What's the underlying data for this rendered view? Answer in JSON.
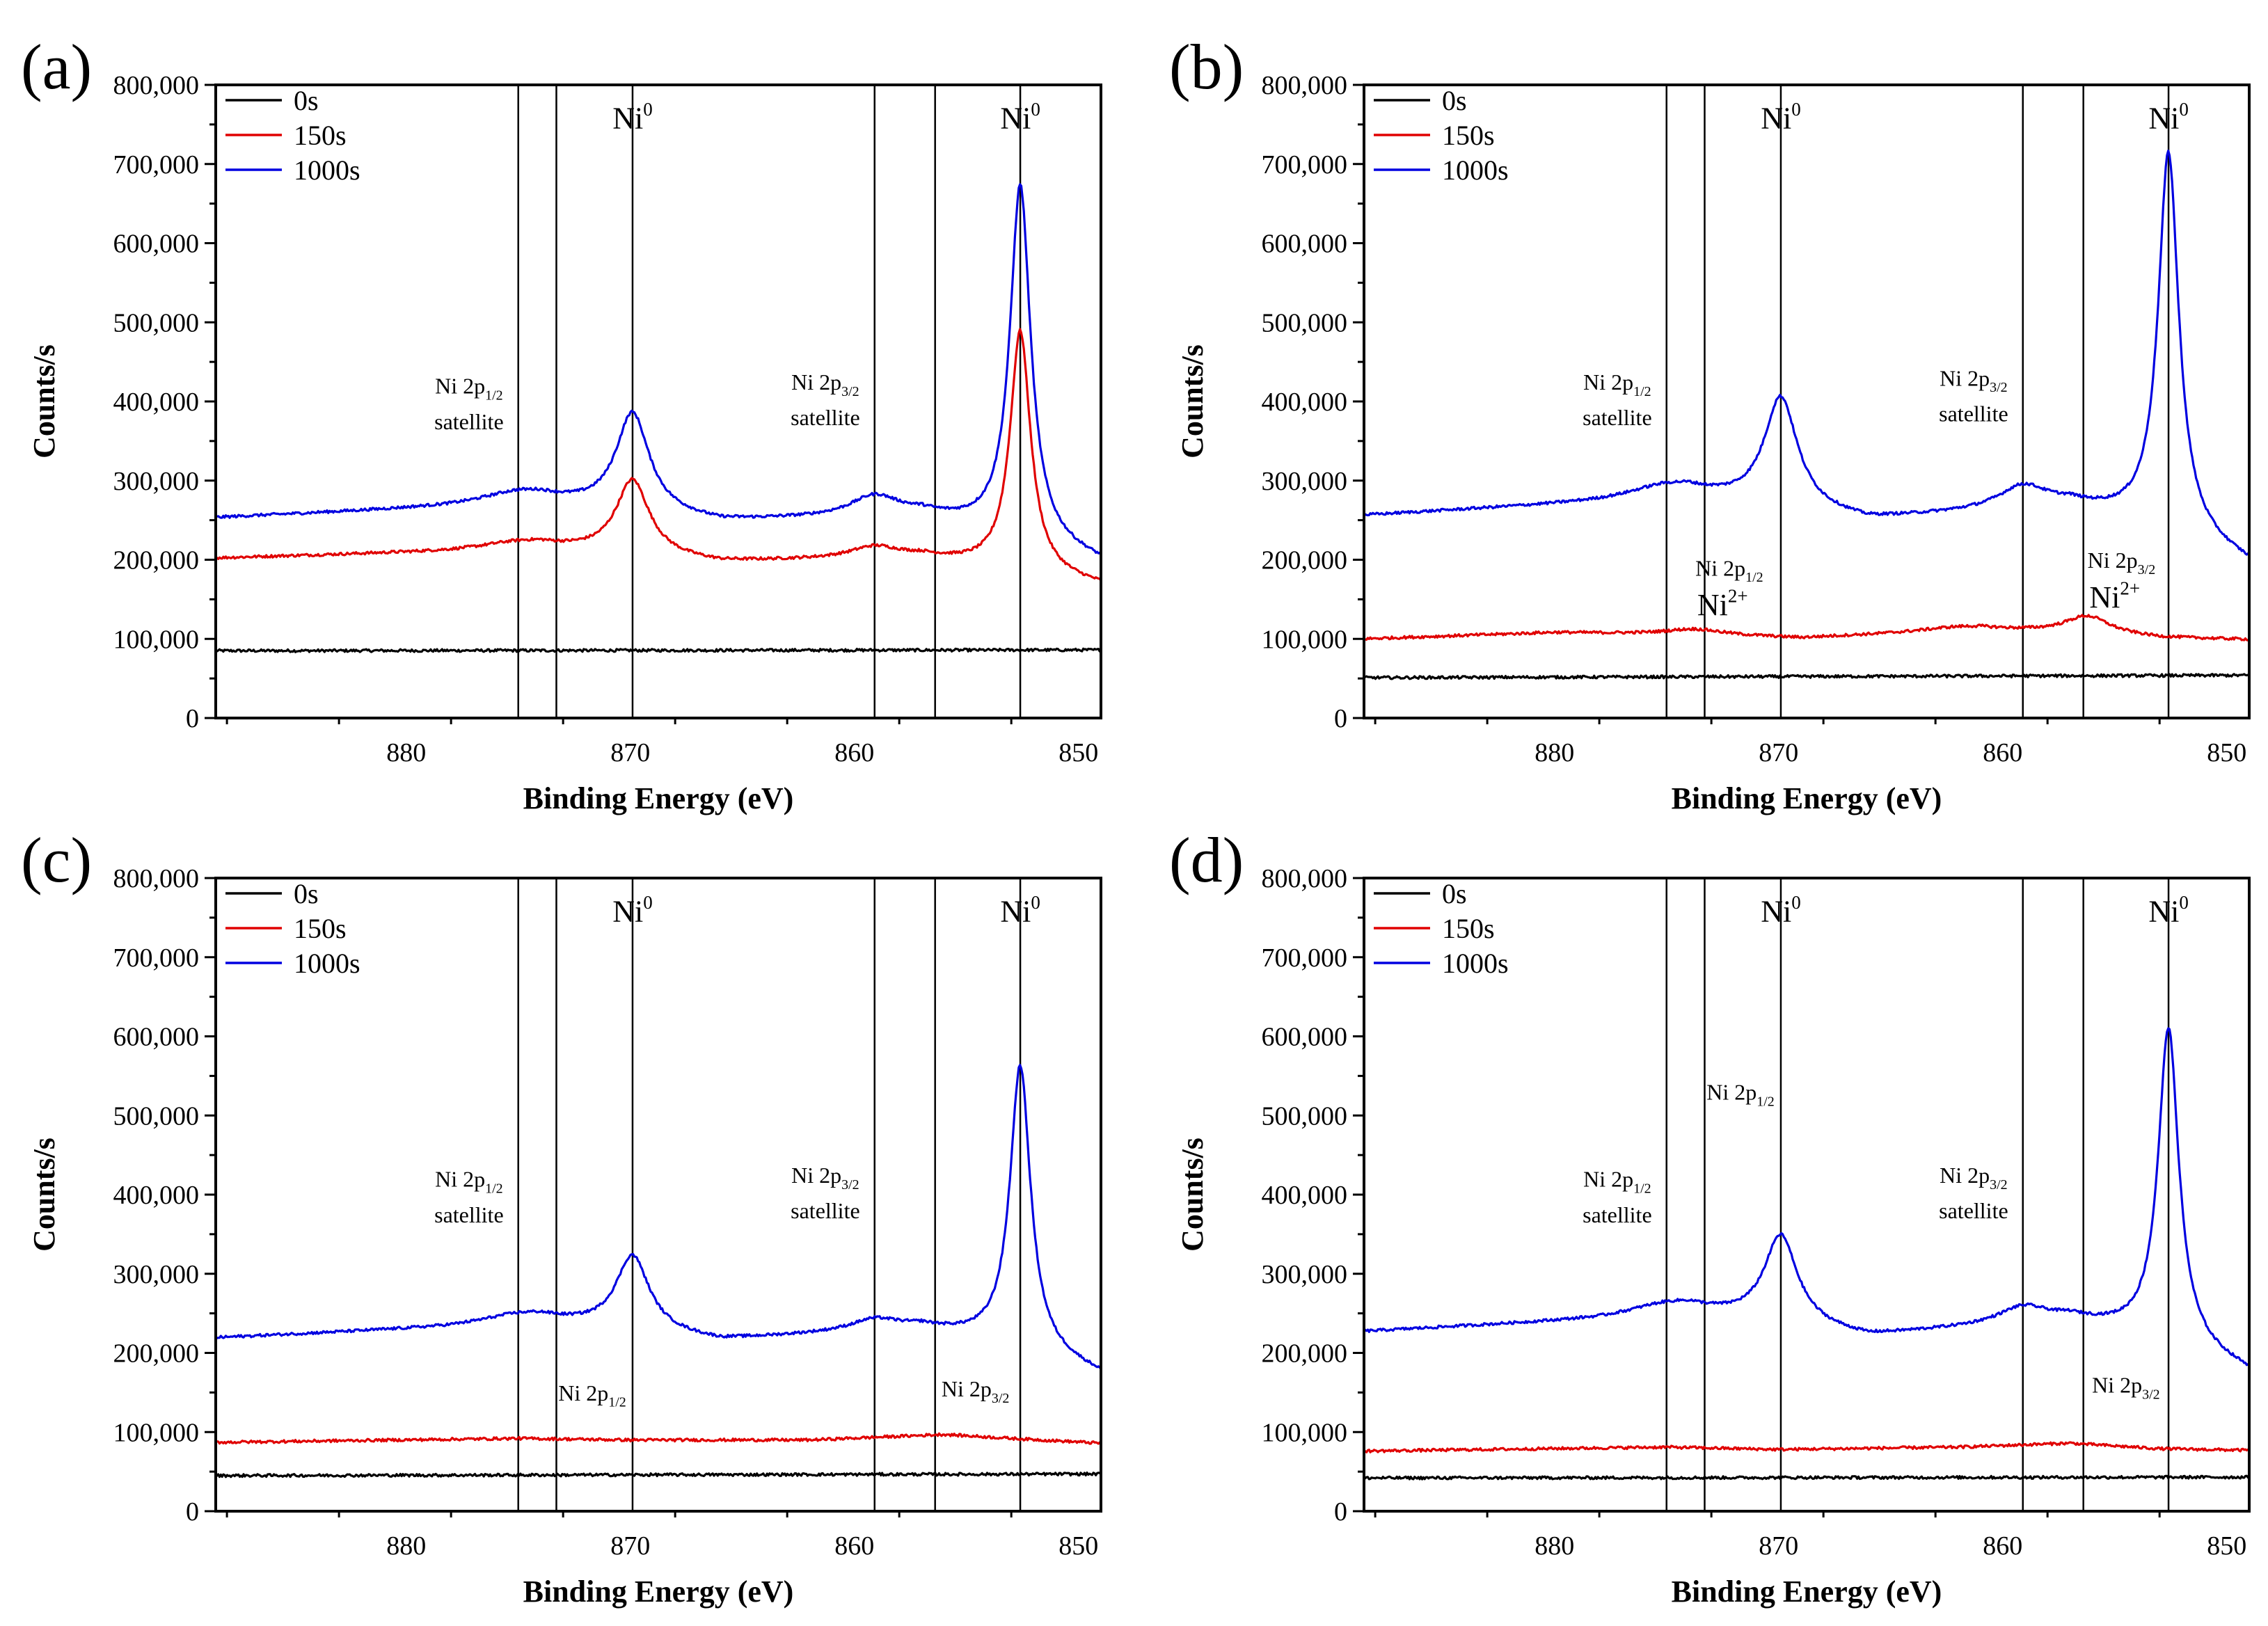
{
  "figure": {
    "colors": {
      "0s": "#000000",
      "150s": "#e00000",
      "1000s": "#0000e0",
      "axis": "#000000"
    }
  },
  "chart_data": [
    {
      "panel": "(a)",
      "type": "line",
      "xlabel": "Binding Energy (eV)",
      "ylabel": "Counts/s",
      "xlim": [
        888.5,
        849
      ],
      "ylim": [
        0,
        800000
      ],
      "xticks": [
        880,
        870,
        860,
        850
      ],
      "yticks": [
        0,
        100000,
        200000,
        300000,
        400000,
        500000,
        600000,
        700000,
        800000
      ],
      "ytick_labels": [
        "0",
        "100,000",
        "200,000",
        "300,000",
        "400,000",
        "500,000",
        "600,000",
        "700,000",
        "800,000"
      ],
      "legend": [
        "0s",
        "150s",
        "1000s"
      ],
      "vlines": [
        875.0,
        873.3,
        869.9,
        859.1,
        856.4,
        852.6
      ],
      "labels": [
        {
          "text": "Ni",
          "sup": "0",
          "x": 869.9,
          "y": 745000
        },
        {
          "text": "Ni",
          "sup": "0",
          "x": 852.6,
          "y": 745000
        },
        {
          "text": "Ni 2p",
          "sub": "1/2",
          "x": 877.2,
          "y": 410000
        },
        {
          "text": "satellite",
          "x": 877.2,
          "y": 365000
        },
        {
          "text": "Ni 2p",
          "sub": "3/2",
          "x": 861.3,
          "y": 415000
        },
        {
          "text": "satellite",
          "x": 861.3,
          "y": 370000
        }
      ],
      "series": [
        {
          "name": "0s",
          "baseline": [
            [
              888.5,
              85000
            ],
            [
              849,
              86000
            ]
          ],
          "peaks": []
        },
        {
          "name": "150s",
          "baseline": [
            [
              888.5,
              202000
            ],
            [
              878,
              210000
            ],
            [
              874,
              215000
            ],
            [
              866,
              196000
            ],
            [
              857,
              203000
            ],
            [
              852.8,
              185000
            ],
            [
              849,
              167000
            ]
          ],
          "peaks": [
            [
              875.0,
              8000,
              2.0
            ],
            [
              869.9,
              95000,
              0.9
            ],
            [
              859.1,
              14000,
              1.3
            ],
            [
              852.6,
              305000,
              0.55
            ]
          ]
        },
        {
          "name": "1000s",
          "baseline": [
            [
              888.5,
              253000
            ],
            [
              878,
              266000
            ],
            [
              874,
              272000
            ],
            [
              866,
              247000
            ],
            [
              857,
              256000
            ],
            [
              852.8,
              230000
            ],
            [
              849,
              196000
            ]
          ],
          "peaks": [
            [
              875.0,
              14000,
              2.0
            ],
            [
              869.9,
              125000,
              0.9
            ],
            [
              859.1,
              25000,
              1.3
            ],
            [
              852.6,
              445000,
              0.55
            ]
          ]
        }
      ]
    },
    {
      "panel": "(b)",
      "type": "line",
      "xlabel": "Binding Energy (eV)",
      "ylabel": "Counts/s",
      "xlim": [
        888.5,
        849
      ],
      "ylim": [
        0,
        800000
      ],
      "xticks": [
        880,
        870,
        860,
        850
      ],
      "yticks": [
        0,
        100000,
        200000,
        300000,
        400000,
        500000,
        600000,
        700000,
        800000
      ],
      "ytick_labels": [
        "0",
        "100,000",
        "200,000",
        "300,000",
        "400,000",
        "500,000",
        "600,000",
        "700,000",
        "800,000"
      ],
      "legend": [
        "0s",
        "150s",
        "1000s"
      ],
      "vlines": [
        875.0,
        873.3,
        869.9,
        859.1,
        856.4,
        852.6
      ],
      "labels": [
        {
          "text": "Ni",
          "sup": "0",
          "x": 869.9,
          "y": 745000
        },
        {
          "text": "Ni",
          "sup": "0",
          "x": 852.6,
          "y": 745000
        },
        {
          "text": "Ni 2p",
          "sub": "1/2",
          "x": 877.2,
          "y": 415000
        },
        {
          "text": "satellite",
          "x": 877.2,
          "y": 370000
        },
        {
          "text": "Ni 2p",
          "sub": "3/2",
          "x": 861.3,
          "y": 420000
        },
        {
          "text": "satellite",
          "x": 861.3,
          "y": 375000
        },
        {
          "text": "Ni 2p",
          "sub": "1/2",
          "x": 872.2,
          "y": 180000
        },
        {
          "text": "Ni",
          "sup": "2+",
          "x": 872.5,
          "y": 130000
        },
        {
          "text": "Ni 2p",
          "sub": "3/2",
          "x": 854.7,
          "y": 190000
        },
        {
          "text": "Ni",
          "sup": "2+",
          "x": 855.0,
          "y": 140000
        }
      ],
      "series": [
        {
          "name": "0s",
          "baseline": [
            [
              888.5,
              51000
            ],
            [
              849,
              54000
            ]
          ],
          "peaks": []
        },
        {
          "name": "150s",
          "baseline": [
            [
              888.5,
              100000
            ],
            [
              880,
              108000
            ],
            [
              873,
              105000
            ],
            [
              869,
              101000
            ],
            [
              861,
              111000
            ],
            [
              857,
              108000
            ],
            [
              853,
              101000
            ],
            [
              849,
              99000
            ]
          ],
          "peaks": [
            [
              873.8,
              7000,
              1.5
            ],
            [
              856.2,
              22000,
              1.2
            ],
            [
              862.0,
              5000,
              2.0
            ]
          ]
        },
        {
          "name": "1000s",
          "baseline": [
            [
              888.5,
              256000
            ],
            [
              878,
              272000
            ],
            [
              874,
              280000
            ],
            [
              866,
              249000
            ],
            [
              857,
              268000
            ],
            [
              852.8,
              242000
            ],
            [
              849,
              194000
            ]
          ],
          "peaks": [
            [
              875.0,
              15000,
              2.0
            ],
            [
              869.9,
              140000,
              0.9
            ],
            [
              859.1,
              28000,
              1.3
            ],
            [
              852.6,
              475000,
              0.55
            ]
          ]
        }
      ]
    },
    {
      "panel": "(c)",
      "type": "line",
      "xlabel": "Binding Energy (eV)",
      "ylabel": "Counts/s",
      "xlim": [
        888.5,
        849
      ],
      "ylim": [
        0,
        800000
      ],
      "xticks": [
        880,
        870,
        860,
        850
      ],
      "yticks": [
        0,
        100000,
        200000,
        300000,
        400000,
        500000,
        600000,
        700000,
        800000
      ],
      "ytick_labels": [
        "0",
        "100,000",
        "200,000",
        "300,000",
        "400,000",
        "500,000",
        "600,000",
        "700,000",
        "800,000"
      ],
      "legend": [
        "0s",
        "150s",
        "1000s"
      ],
      "vlines": [
        875.0,
        873.3,
        869.9,
        859.1,
        856.4,
        852.6
      ],
      "labels": [
        {
          "text": "Ni",
          "sup": "0",
          "x": 869.9,
          "y": 745000
        },
        {
          "text": "Ni",
          "sup": "0",
          "x": 852.6,
          "y": 745000
        },
        {
          "text": "Ni 2p",
          "sub": "1/2",
          "x": 877.2,
          "y": 410000
        },
        {
          "text": "satellite",
          "x": 877.2,
          "y": 365000
        },
        {
          "text": "Ni 2p",
          "sub": "3/2",
          "x": 861.3,
          "y": 415000
        },
        {
          "text": "satellite",
          "x": 861.3,
          "y": 370000
        },
        {
          "text": "Ni 2p",
          "sub": "1/2",
          "x": 871.7,
          "y": 140000
        },
        {
          "text": "Ni 2p",
          "sub": "3/2",
          "x": 854.6,
          "y": 145000
        }
      ],
      "series": [
        {
          "name": "0s",
          "baseline": [
            [
              888.5,
              45000
            ],
            [
              849,
              47000
            ]
          ],
          "peaks": []
        },
        {
          "name": "150s",
          "baseline": [
            [
              888.5,
              87000
            ],
            [
              875,
              92000
            ],
            [
              870,
              90000
            ],
            [
              862,
              90000
            ],
            [
              856,
              97000
            ],
            [
              853,
              92000
            ],
            [
              849,
              86000
            ]
          ],
          "peaks": []
        },
        {
          "name": "1000s",
          "baseline": [
            [
              888.5,
              219000
            ],
            [
              878,
              232000
            ],
            [
              874,
              240000
            ],
            [
              866,
              215000
            ],
            [
              857,
              231000
            ],
            [
              852.8,
              210000
            ],
            [
              849,
              172000
            ]
          ],
          "peaks": [
            [
              875.0,
              10000,
              2.0
            ],
            [
              869.9,
              95000,
              0.9
            ],
            [
              859.1,
              14000,
              1.3
            ],
            [
              852.6,
              355000,
              0.55
            ]
          ]
        }
      ]
    },
    {
      "panel": "(d)",
      "type": "line",
      "xlabel": "Binding Energy (eV)",
      "ylabel": "Counts/s",
      "xlim": [
        888.5,
        849
      ],
      "ylim": [
        0,
        800000
      ],
      "xticks": [
        880,
        870,
        860,
        850
      ],
      "yticks": [
        0,
        100000,
        200000,
        300000,
        400000,
        500000,
        600000,
        700000,
        800000
      ],
      "ytick_labels": [
        "0",
        "100,000",
        "200,000",
        "300,000",
        "400,000",
        "500,000",
        "600,000",
        "700,000",
        "800,000"
      ],
      "legend": [
        "0s",
        "150s",
        "1000s"
      ],
      "vlines": [
        875.0,
        873.3,
        869.9,
        859.1,
        856.4,
        852.6
      ],
      "labels": [
        {
          "text": "Ni",
          "sup": "0",
          "x": 869.9,
          "y": 745000
        },
        {
          "text": "Ni",
          "sup": "0",
          "x": 852.6,
          "y": 745000
        },
        {
          "text": "Ni 2p",
          "sub": "1/2",
          "x": 871.7,
          "y": 520000
        },
        {
          "text": "Ni 2p",
          "sub": "1/2",
          "x": 877.2,
          "y": 410000
        },
        {
          "text": "satellite",
          "x": 877.2,
          "y": 365000
        },
        {
          "text": "Ni 2p",
          "sub": "3/2",
          "x": 861.3,
          "y": 415000
        },
        {
          "text": "satellite",
          "x": 861.3,
          "y": 370000
        },
        {
          "text": "Ni 2p",
          "sub": "3/2",
          "x": 854.5,
          "y": 150000
        }
      ],
      "series": [
        {
          "name": "0s",
          "baseline": [
            [
              888.5,
              42000
            ],
            [
              849,
              43000
            ]
          ],
          "peaks": []
        },
        {
          "name": "150s",
          "baseline": [
            [
              888.5,
              76000
            ],
            [
              875,
              81000
            ],
            [
              870,
              78000
            ],
            [
              862,
              81000
            ],
            [
              857,
              86000
            ],
            [
              853,
              79000
            ],
            [
              849,
              77000
            ]
          ],
          "peaks": []
        },
        {
          "name": "1000s",
          "baseline": [
            [
              888.5,
              227000
            ],
            [
              878,
              242000
            ],
            [
              874,
              252000
            ],
            [
              866,
              220000
            ],
            [
              857,
              242000
            ],
            [
              852.8,
              218000
            ],
            [
              849,
              175000
            ]
          ],
          "peaks": [
            [
              875.0,
              12000,
              2.0
            ],
            [
              869.9,
              112000,
              0.9
            ],
            [
              859.1,
              20000,
              1.3
            ],
            [
              852.6,
              395000,
              0.55
            ]
          ]
        }
      ]
    }
  ]
}
